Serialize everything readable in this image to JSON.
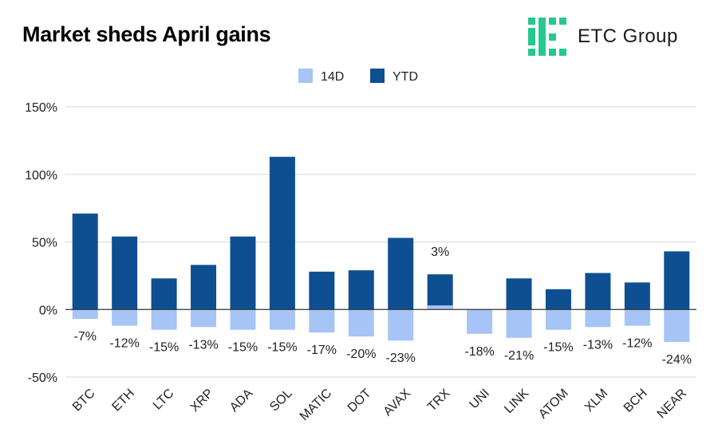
{
  "header": {
    "title": "Market sheds April gains",
    "brand": "ETC Group"
  },
  "colors": {
    "ytd": "#0e4f92",
    "d14": "#a6c4f5",
    "grid": "#d9d9d9",
    "axis": "#333333",
    "brand_green": "#25c98d"
  },
  "icons": [
    "etc-group-logo-icon"
  ],
  "chart_data": {
    "type": "bar",
    "title": "Market sheds April gains",
    "legend_position": "top-center",
    "grid": true,
    "ylim": [
      -50,
      150
    ],
    "yticks": [
      -50,
      0,
      50,
      100,
      150
    ],
    "ytick_labels": [
      "-50%",
      "0%",
      "50%",
      "100%",
      "150%"
    ],
    "categories": [
      "BTC",
      "ETH",
      "LTC",
      "XRP",
      "ADA",
      "SOL",
      "MATIC",
      "DOT",
      "AVAX",
      "TRX",
      "UNI",
      "LINK",
      "ATOM",
      "XLM",
      "BCH",
      "NEAR"
    ],
    "series": [
      {
        "name": "14D",
        "values": [
          -7,
          -12,
          -15,
          -13,
          -15,
          -15,
          -17,
          -20,
          -23,
          3,
          -18,
          -21,
          -15,
          -13,
          -12,
          -24
        ],
        "labels": [
          "-7%",
          "-12%",
          "-15%",
          "-13%",
          "-15%",
          "-15%",
          "-17%",
          "-20%",
          "-23%",
          "3%",
          "-18%",
          "-21%",
          "-15%",
          "-13%",
          "-12%",
          "-24%"
        ]
      },
      {
        "name": "YTD",
        "values": [
          71,
          54,
          23,
          33,
          54,
          113,
          28,
          29,
          53,
          26,
          0,
          23,
          15,
          27,
          20,
          43
        ]
      }
    ]
  }
}
